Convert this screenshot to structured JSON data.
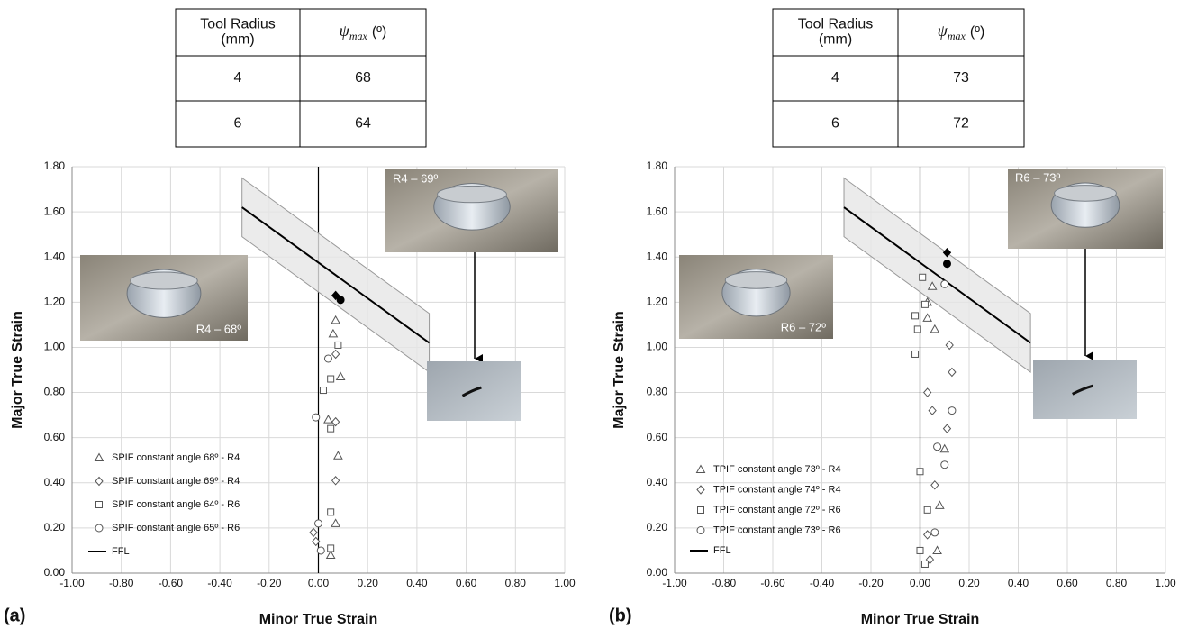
{
  "tables": [
    {
      "columns": [
        {
          "lines": [
            "Tool Radius",
            "(mm)"
          ]
        },
        {
          "symbol": "ψ",
          "subscript": "max",
          "unit": "(º)"
        }
      ],
      "rows": [
        [
          4,
          68
        ],
        [
          6,
          64
        ]
      ]
    },
    {
      "columns": [
        {
          "lines": [
            "Tool Radius",
            "(mm)"
          ]
        },
        {
          "symbol": "ψ",
          "subscript": "max",
          "unit": "(º)"
        }
      ],
      "rows": [
        [
          4,
          73
        ],
        [
          6,
          72
        ]
      ]
    }
  ],
  "chart_data": [
    {
      "type": "scatter",
      "label": "(a)",
      "xlabel": "Minor True Strain",
      "ylabel": "Major True Strain",
      "grid": true,
      "xlim": [
        -1,
        1
      ],
      "ylim": [
        0,
        1.8
      ],
      "xticks": [
        {
          "value": -1,
          "label": "-1.00"
        },
        {
          "value": -0.8,
          "label": "-0.80"
        },
        {
          "value": -0.6,
          "label": "-0.60"
        },
        {
          "value": -0.4,
          "label": "-0.40"
        },
        {
          "value": -0.2,
          "label": "-0.20"
        },
        {
          "value": 0,
          "label": "0.00"
        },
        {
          "value": 0.2,
          "label": "0.20"
        },
        {
          "value": 0.4,
          "label": "0.40"
        },
        {
          "value": 0.6,
          "label": "0.60"
        },
        {
          "value": 0.8,
          "label": "0.80"
        },
        {
          "value": 1,
          "label": "1.00"
        }
      ],
      "yticks": [
        {
          "value": 0,
          "label": "0.00"
        },
        {
          "value": 0.2,
          "label": "0.20"
        },
        {
          "value": 0.4,
          "label": "0.40"
        },
        {
          "value": 0.6,
          "label": "0.60"
        },
        {
          "value": 0.8,
          "label": "0.80"
        },
        {
          "value": 1,
          "label": "1.00"
        },
        {
          "value": 1.2,
          "label": "1.20"
        },
        {
          "value": 1.4,
          "label": "1.40"
        },
        {
          "value": 1.6,
          "label": "1.60"
        },
        {
          "value": 1.8,
          "label": "1.80"
        }
      ],
      "series": [
        {
          "name": "SPIF constant angle 68º - R4",
          "marker": "triangle",
          "color": "#555555",
          "x": [
            0.07,
            0.06,
            0.09,
            0.04,
            0.08,
            0.07,
            0.05
          ],
          "values": [
            1.12,
            1.06,
            0.87,
            0.68,
            0.52,
            0.22,
            0.08
          ]
        },
        {
          "name": "SPIF constant angle 69º - R4",
          "marker": "diamond",
          "color": "#555555",
          "x": [
            0.07,
            0.07,
            0.07,
            -0.02,
            -0.01
          ],
          "values": [
            0.97,
            0.67,
            0.41,
            0.18,
            0.14
          ]
        },
        {
          "name": "SPIF constant angle 64º - R6",
          "marker": "square",
          "color": "#555555",
          "x": [
            0.08,
            0.05,
            0.02,
            0.05,
            0.05,
            0.05
          ],
          "values": [
            1.01,
            0.86,
            0.81,
            0.64,
            0.27,
            0.11
          ]
        },
        {
          "name": "SPIF constant angle 65º - R6",
          "marker": "circle",
          "color": "#555555",
          "x": [
            0.04,
            -0.01,
            0.0,
            0.01
          ],
          "values": [
            0.95,
            0.69,
            0.22,
            0.1
          ]
        },
        {
          "name": "FFL",
          "marker": "line",
          "color": "#000000",
          "band_color": "#e6e6e6",
          "x": [
            -0.31,
            0.45
          ],
          "values": [
            1.62,
            1.02
          ],
          "band_upper": [
            1.75,
            1.15
          ],
          "band_lower": [
            1.49,
            0.89
          ]
        },
        {
          "marker": "diamond",
          "filled": true,
          "color": "#000000",
          "x": [
            0.07
          ],
          "values": [
            1.23
          ]
        },
        {
          "marker": "circle",
          "filled": true,
          "color": "#000000",
          "x": [
            0.09
          ],
          "values": [
            1.21
          ]
        }
      ],
      "photos": [
        {
          "caption": "R4 – 69º"
        },
        {
          "caption": "R4 – 68º"
        }
      ]
    },
    {
      "type": "scatter",
      "label": "(b)",
      "xlabel": "Minor True Strain",
      "ylabel": "Major True Strain",
      "grid": true,
      "xlim": [
        -1,
        1
      ],
      "ylim": [
        0,
        1.8
      ],
      "xticks": [
        {
          "value": -1,
          "label": "-1.00"
        },
        {
          "value": -0.8,
          "label": "-0.80"
        },
        {
          "value": -0.6,
          "label": "-0.60"
        },
        {
          "value": -0.4,
          "label": "-0.40"
        },
        {
          "value": -0.2,
          "label": "-0.20"
        },
        {
          "value": 0,
          "label": "0.00"
        },
        {
          "value": 0.2,
          "label": "0.20"
        },
        {
          "value": 0.4,
          "label": "0.40"
        },
        {
          "value": 0.6,
          "label": "0.60"
        },
        {
          "value": 0.8,
          "label": "0.80"
        },
        {
          "value": 1,
          "label": "1.00"
        }
      ],
      "yticks": [
        {
          "value": 0,
          "label": "0.00"
        },
        {
          "value": 0.2,
          "label": "0.20"
        },
        {
          "value": 0.4,
          "label": "0.40"
        },
        {
          "value": 0.6,
          "label": "0.60"
        },
        {
          "value": 0.8,
          "label": "0.80"
        },
        {
          "value": 1,
          "label": "1.00"
        },
        {
          "value": 1.2,
          "label": "1.20"
        },
        {
          "value": 1.4,
          "label": "1.40"
        },
        {
          "value": 1.6,
          "label": "1.60"
        },
        {
          "value": 1.8,
          "label": "1.80"
        }
      ],
      "series": [
        {
          "name": "TPIF constant angle 73º - R4",
          "marker": "triangle",
          "color": "#555555",
          "x": [
            0.05,
            0.03,
            0.03,
            0.06,
            0.1,
            0.08,
            0.07
          ],
          "values": [
            1.27,
            1.2,
            1.13,
            1.08,
            0.55,
            0.3,
            0.1
          ]
        },
        {
          "name": "TPIF constant angle 74º - R4",
          "marker": "diamond",
          "color": "#555555",
          "x": [
            0.12,
            0.13,
            0.03,
            0.05,
            0.11,
            0.06,
            0.03,
            0.04
          ],
          "values": [
            1.01,
            0.89,
            0.8,
            0.72,
            0.64,
            0.39,
            0.17,
            0.06
          ]
        },
        {
          "name": "TPIF constant angle 72º - R6",
          "marker": "square",
          "color": "#555555",
          "x": [
            0.01,
            0.02,
            -0.02,
            -0.01,
            -0.02,
            0.0,
            0.03,
            0.0,
            0.02
          ],
          "values": [
            1.31,
            1.19,
            1.14,
            1.08,
            0.97,
            0.45,
            0.28,
            0.1,
            0.04
          ]
        },
        {
          "name": "TPIF constant angle 73º - R6",
          "marker": "circle",
          "color": "#555555",
          "x": [
            0.1,
            0.13,
            0.07,
            0.1,
            0.06
          ],
          "values": [
            1.28,
            0.72,
            0.56,
            0.48,
            0.18
          ]
        },
        {
          "name": "FFL",
          "marker": "line",
          "color": "#000000",
          "band_color": "#e6e6e6",
          "x": [
            -0.31,
            0.45
          ],
          "values": [
            1.62,
            1.02
          ],
          "band_upper": [
            1.75,
            1.15
          ],
          "band_lower": [
            1.49,
            0.89
          ]
        },
        {
          "marker": "diamond",
          "filled": true,
          "color": "#000000",
          "x": [
            0.11
          ],
          "values": [
            1.42
          ]
        },
        {
          "marker": "circle",
          "filled": true,
          "color": "#000000",
          "x": [
            0.11
          ],
          "values": [
            1.37
          ]
        }
      ],
      "photos": [
        {
          "caption": "R6 – 73º"
        },
        {
          "caption": "R6 – 72º"
        }
      ]
    }
  ]
}
